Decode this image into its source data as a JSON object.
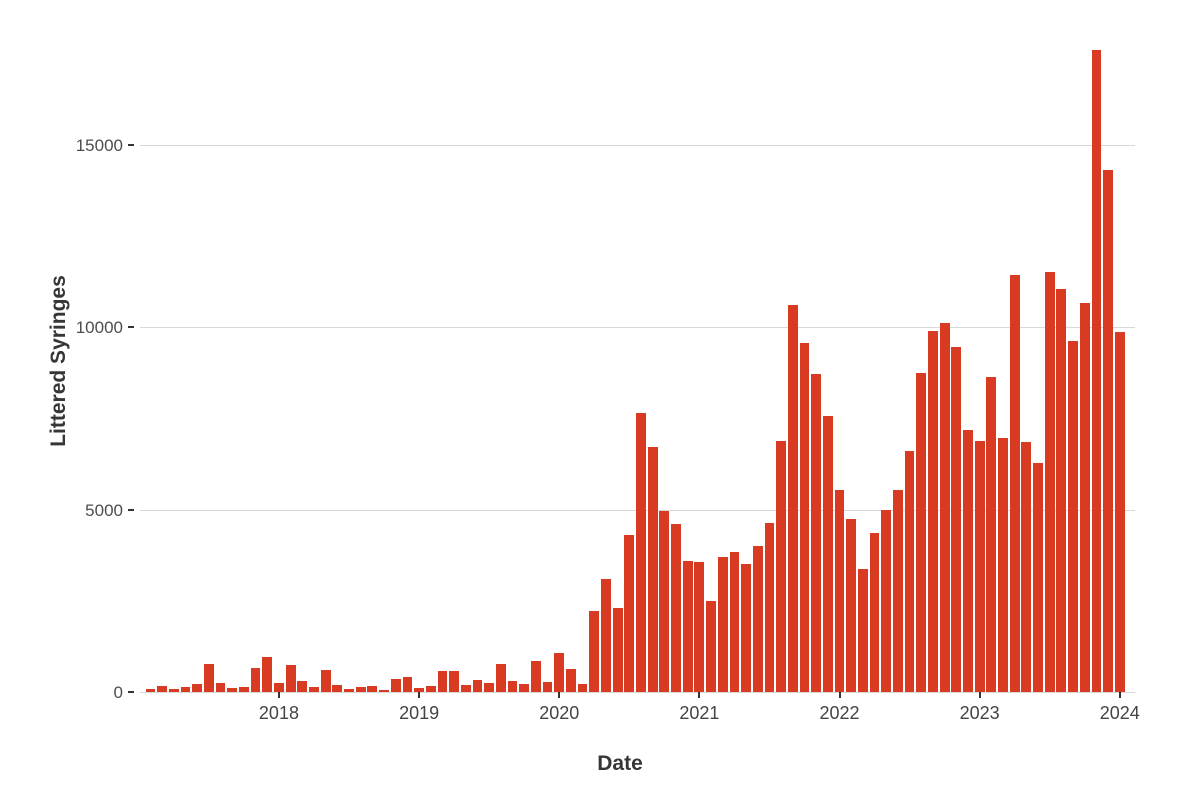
{
  "chart_data": {
    "type": "bar",
    "title": "",
    "xlabel": "Date",
    "ylabel": "Littered Syringes",
    "x": [
      "2017-02",
      "2017-03",
      "2017-04",
      "2017-05",
      "2017-06",
      "2017-07",
      "2017-08",
      "2017-09",
      "2017-10",
      "2017-11",
      "2017-12",
      "2018-01",
      "2018-02",
      "2018-03",
      "2018-04",
      "2018-05",
      "2018-06",
      "2018-07",
      "2018-08",
      "2018-09",
      "2018-10",
      "2018-11",
      "2018-12",
      "2019-01",
      "2019-02",
      "2019-03",
      "2019-04",
      "2019-05",
      "2019-06",
      "2019-07",
      "2019-08",
      "2019-09",
      "2019-10",
      "2019-11",
      "2019-12",
      "2020-01",
      "2020-02",
      "2020-03",
      "2020-04",
      "2020-05",
      "2020-06",
      "2020-07",
      "2020-08",
      "2020-09",
      "2020-10",
      "2020-11",
      "2020-12",
      "2021-01",
      "2021-02",
      "2021-03",
      "2021-04",
      "2021-05",
      "2021-06",
      "2021-07",
      "2021-08",
      "2021-09",
      "2021-10",
      "2021-11",
      "2021-12",
      "2022-01",
      "2022-02",
      "2022-03",
      "2022-04",
      "2022-05",
      "2022-06",
      "2022-07",
      "2022-08",
      "2022-09",
      "2022-10",
      "2022-11",
      "2022-12",
      "2023-01",
      "2023-02",
      "2023-03",
      "2023-04",
      "2023-05",
      "2023-06",
      "2023-07",
      "2023-08",
      "2023-09",
      "2023-10",
      "2023-11",
      "2023-12",
      "2024-01"
    ],
    "values": [
      75,
      165,
      75,
      135,
      230,
      780,
      255,
      110,
      150,
      660,
      960,
      245,
      730,
      290,
      140,
      590,
      200,
      75,
      135,
      165,
      65,
      355,
      410,
      120,
      155,
      575,
      575,
      185,
      320,
      245,
      775,
      300,
      210,
      850,
      275,
      1070,
      640,
      210,
      2220,
      3090,
      2290,
      4290,
      7640,
      6700,
      4950,
      4590,
      3580,
      3550,
      2480,
      3700,
      3840,
      3500,
      4000,
      4620,
      6880,
      10600,
      9570,
      8710,
      7560,
      5530,
      4730,
      3360,
      4360,
      4990,
      5530,
      6610,
      8750,
      9900,
      10120,
      9440,
      7190,
      6880,
      8630,
      6950,
      11430,
      6840,
      6270,
      11500,
      11030,
      9620,
      10670,
      17600,
      14300,
      9850
    ],
    "yticks": [
      0,
      5000,
      10000,
      15000
    ],
    "ylim": [
      0,
      17900
    ],
    "xticks": [
      {
        "label": "2018",
        "month_index": 11
      },
      {
        "label": "2019",
        "month_index": 23
      },
      {
        "label": "2020",
        "month_index": 35
      },
      {
        "label": "2021",
        "month_index": 47
      },
      {
        "label": "2022",
        "month_index": 59
      },
      {
        "label": "2023",
        "month_index": 71
      },
      {
        "label": "2024",
        "month_index": 83
      }
    ],
    "grid": "horizontal-only",
    "legend": "none",
    "colors": {
      "bar_fill": "#d93b22",
      "gridline": "#d9d9d9",
      "tick_mark": "#333333",
      "tick_label": "#4d4d4d",
      "axis_title": "#363636",
      "background": "#ffffff"
    }
  }
}
